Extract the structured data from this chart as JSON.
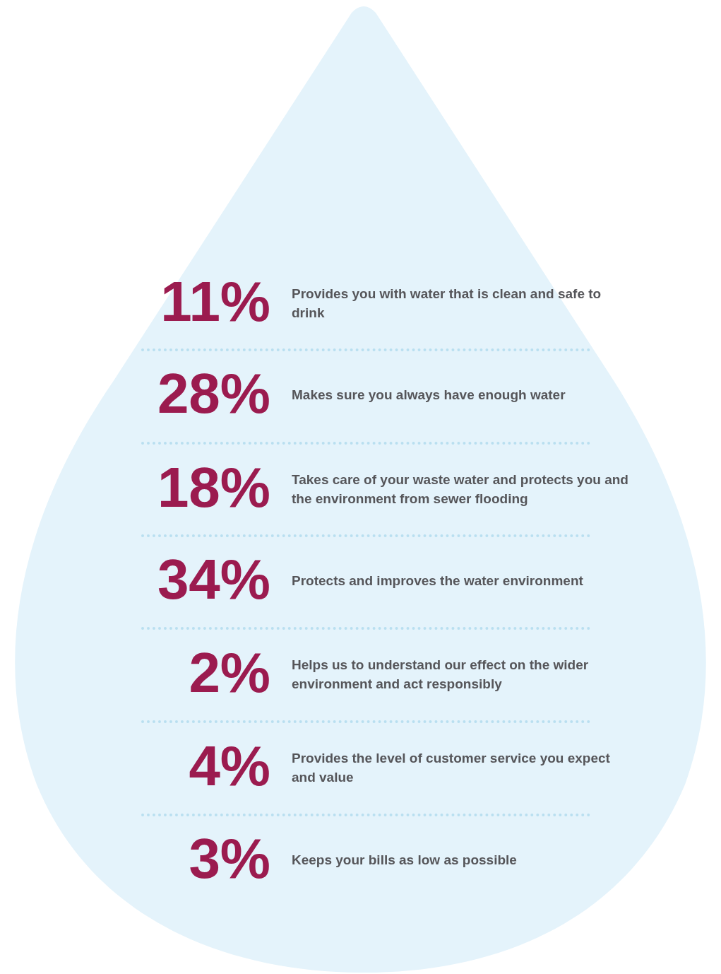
{
  "chart_data": {
    "type": "other",
    "categories": [
      "Provides you with water that is clean and safe to drink",
      "Makes sure you always have enough water",
      "Takes care of your waste water and protects you and the environment from sewer flooding",
      "Protects and improves the water environment",
      "Helps us to understand our effect on the wider environment and act responsibly",
      "Provides the level of customer service you expect and value",
      "Keeps your bills as low as possible"
    ],
    "values": [
      11,
      28,
      18,
      34,
      2,
      4,
      3
    ],
    "value_labels": [
      "11%",
      "28%",
      "18%",
      "34%",
      "2%",
      "4%",
      "3%"
    ],
    "color": "#9b1b4f"
  }
}
